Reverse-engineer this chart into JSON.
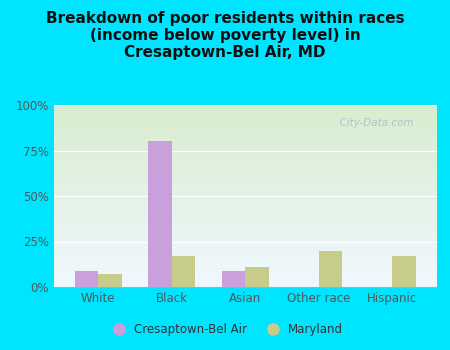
{
  "categories": [
    "White",
    "Black",
    "Asian",
    "Other race",
    "Hispanic"
  ],
  "cresaptown_values": [
    9,
    80,
    9,
    0,
    0
  ],
  "maryland_values": [
    7,
    17,
    11,
    20,
    17
  ],
  "cresaptown_color": "#c9a0dc",
  "maryland_color": "#c8cc8a",
  "title": "Breakdown of poor residents within races\n(income below poverty level) in\nCresaptown-Bel Air, MD",
  "title_fontsize": 11,
  "title_fontweight": "bold",
  "ylabel_ticks": [
    "0%",
    "25%",
    "50%",
    "75%",
    "100%"
  ],
  "ytick_values": [
    0,
    25,
    50,
    75,
    100
  ],
  "ylim": [
    0,
    100
  ],
  "background_outer": "#00e5ff",
  "bg_top_color": "#f0f8ff",
  "bg_bottom_color": "#d8edcf",
  "legend_label1": "Cresaptown-Bel Air",
  "legend_label2": "Maryland",
  "bar_width": 0.32,
  "watermark": "  City-Data.com"
}
